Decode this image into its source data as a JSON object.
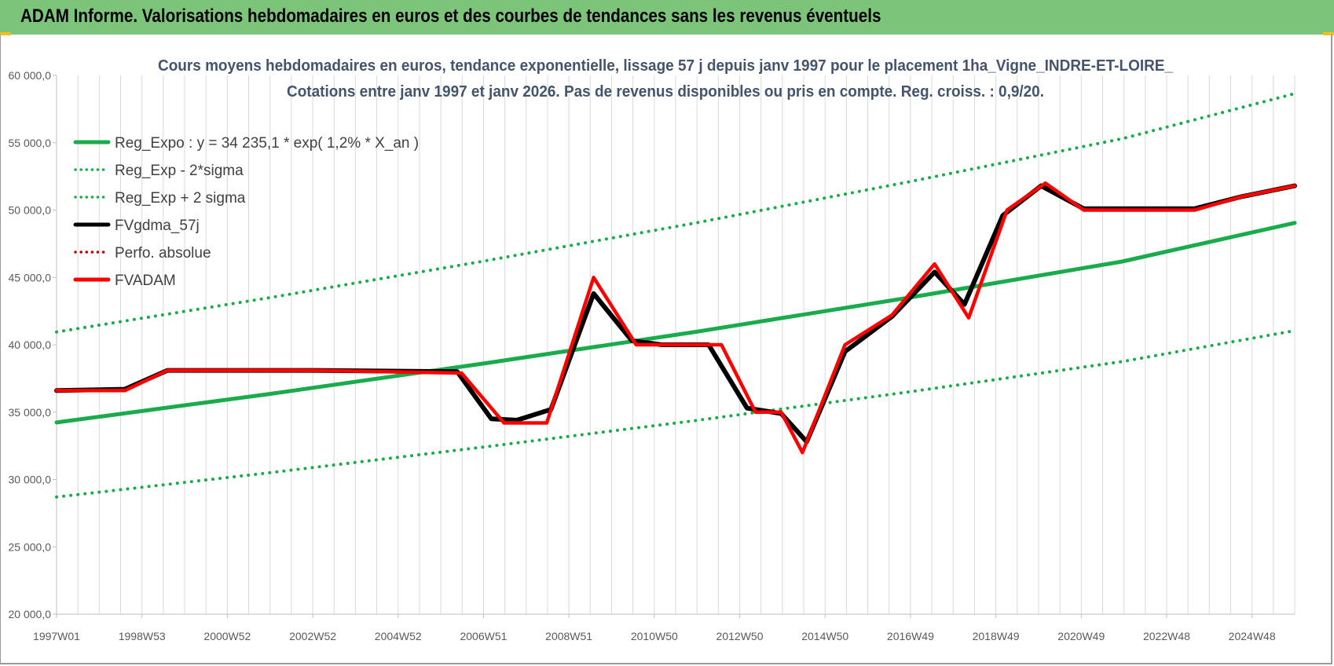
{
  "header": {
    "title": "ADAM Informe. Valorisations hebdomadaires en euros et des courbes de tendances sans les revenus éventuels"
  },
  "colors": {
    "header_bg": "#7cc47a",
    "regression": "#1aab4c",
    "fv57": "#000000",
    "fvadam": "#ff0000",
    "perf": "#c00000"
  },
  "chart_data": {
    "type": "line",
    "title": "Cours moyens hebdomadaires en euros, tendance exponentielle, lissage 57 j depuis janv 1997 pour le placement 1ha_Vigne_INDRE-ET-LOIRE_",
    "subtitle": "Cotations entre janv 1997 et janv 2026. Pas de revenus disponibles ou pris en compte. Reg. croiss. : 0,9/20.",
    "xlabel": "",
    "ylabel": "",
    "ylim": [
      20000,
      60000
    ],
    "yticks": [
      "20 000,0",
      "25 000,0",
      "30 000,0",
      "35 000,0",
      "40 000,0",
      "45 000,0",
      "50 000,0",
      "55 000,0",
      "60 000,0"
    ],
    "xlim": [
      1997.0,
      2026.05
    ],
    "xticks": [
      "1997W01",
      "1998W53",
      "2000W52",
      "2002W52",
      "2004W52",
      "2006W51",
      "2008W51",
      "2010W50",
      "2012W50",
      "2014W50",
      "2016W49",
      "2018W49",
      "2020W49",
      "2022W48",
      "2024W48"
    ],
    "grid": "vertical",
    "legend_position": "top-left",
    "series": [
      {
        "name": "Reg_Expo : y = 34 235,1 * exp( 1,2% *  X_an )",
        "style": "solid",
        "color": "#1aab4c",
        "x": [
          1997.0,
          2002.0,
          2007.0,
          2012.0,
          2017.0,
          2022.0,
          2026.05
        ],
        "values": [
          34235,
          36350,
          38600,
          40960,
          43500,
          46180,
          49050
        ]
      },
      {
        "name": "Reg_Exp - 2*sigma",
        "style": "dotted",
        "color": "#1aab4c",
        "x": [
          1997.0,
          2002.0,
          2007.0,
          2012.0,
          2017.0,
          2022.0,
          2026.05
        ],
        "values": [
          28700,
          30500,
          32400,
          34380,
          36500,
          38750,
          41050
        ]
      },
      {
        "name": "Reg_Exp + 2 sigma",
        "style": "dotted",
        "color": "#1aab4c",
        "x": [
          1997.0,
          2002.0,
          2007.0,
          2012.0,
          2017.0,
          2022.0,
          2026.05
        ],
        "values": [
          40950,
          43500,
          46200,
          49050,
          52100,
          55300,
          58650
        ]
      },
      {
        "name": "FVgdma_57j",
        "style": "solid",
        "color": "#000000",
        "x": [
          1997.0,
          1998.6,
          1999.6,
          2003.0,
          2006.4,
          2007.2,
          2007.8,
          2008.6,
          2009.6,
          2010.5,
          2011.2,
          2012.3,
          2013.2,
          2014.0,
          2014.6,
          2015.5,
          2016.6,
          2017.6,
          2018.3,
          2019.2,
          2020.1,
          2021.1,
          2022.5,
          2023.7,
          2024.8,
          2026.05
        ],
        "values": [
          36600,
          36700,
          38100,
          38100,
          38000,
          34500,
          34400,
          35200,
          43800,
          40300,
          40000,
          40000,
          35300,
          34900,
          32800,
          39500,
          42100,
          45400,
          43000,
          49600,
          51800,
          50100,
          50100,
          50100,
          51000,
          51800
        ]
      },
      {
        "name": "Perfo. absolue",
        "style": "dotted",
        "color": "#c00000",
        "x": [],
        "values": []
      },
      {
        "name": "FVADAM",
        "style": "solid",
        "color": "#ff0000",
        "x": [
          1997.0,
          1998.6,
          1999.6,
          2003.0,
          2006.5,
          2007.5,
          2008.5,
          2009.6,
          2010.6,
          2011.6,
          2012.6,
          2013.4,
          2014.0,
          2014.5,
          2015.5,
          2016.6,
          2017.6,
          2018.4,
          2019.3,
          2020.2,
          2021.1,
          2022.5,
          2023.7,
          2024.8,
          2026.05
        ],
        "values": [
          36600,
          36600,
          38100,
          38100,
          37900,
          34200,
          34200,
          45000,
          40000,
          40000,
          40000,
          35000,
          35000,
          32000,
          40000,
          42200,
          46000,
          42000,
          50000,
          52000,
          50000,
          50000,
          50000,
          51000,
          51800
        ]
      }
    ]
  }
}
